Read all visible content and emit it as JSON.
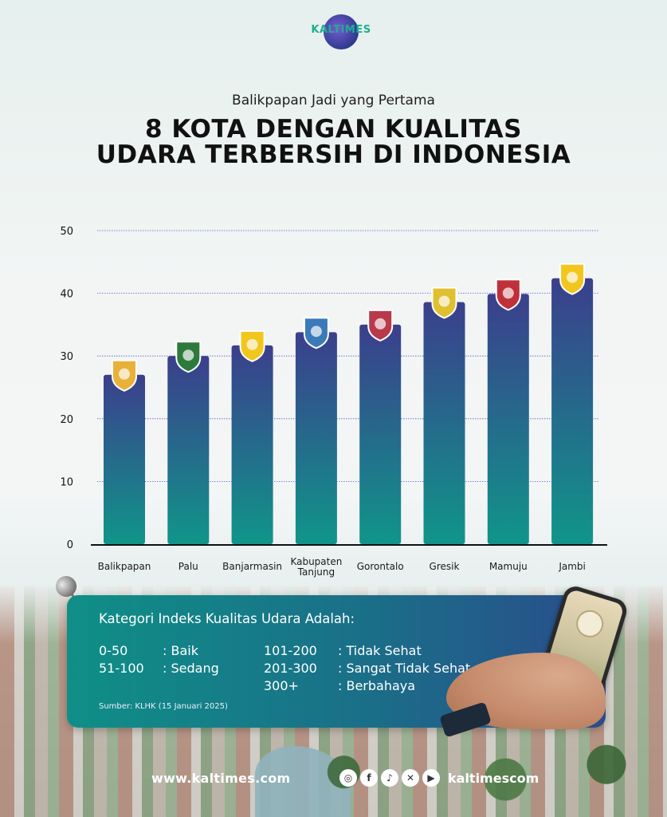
{
  "brand": {
    "logo_text": "KALTIMES"
  },
  "header": {
    "subtitle": "Balikpapan Jadi yang Pertama",
    "title_line1": "8 KOTA DENGAN KUALITAS",
    "title_line2": "UDARA TERBERSIH DI INDONESIA"
  },
  "chart_data": {
    "type": "bar",
    "title": "8 KOTA DENGAN KUALITAS UDARA TERBERSIH DI INDONESIA",
    "categories": [
      "Balikpapan",
      "Palu",
      "Banjarmasin",
      "Kabupaten Tanjung",
      "Gorontalo",
      "Gresik",
      "Mamuju",
      "Jambi"
    ],
    "category_lines": [
      [
        "Balikpapan"
      ],
      [
        "Palu"
      ],
      [
        "Banjarmasin"
      ],
      [
        "Kabupaten",
        "Tanjung"
      ],
      [
        "Gorontalo"
      ],
      [
        "Gresik"
      ],
      [
        "Mamuju"
      ],
      [
        "Jambi"
      ]
    ],
    "values": [
      27,
      30,
      31.7,
      33.8,
      35,
      38.6,
      39.9,
      42.4
    ],
    "ylim": [
      0,
      50
    ],
    "yticks": [
      0,
      10,
      20,
      30,
      40,
      50
    ],
    "xlabel": "",
    "ylabel": "",
    "grid": true,
    "colors": {
      "bar_top": "#3b3f8c",
      "bar_bottom": "#10958a",
      "grid": "#5a5fd0",
      "axis": "#111111"
    }
  },
  "panel": {
    "title": "Kategori Indeks Kualitas Udara Adalah:",
    "categories": [
      {
        "range": "0-50",
        "label": ": Baik"
      },
      {
        "range": "51-100",
        "label": ": Sedang"
      },
      {
        "range": "101-200",
        "label": ": Tidak Sehat"
      },
      {
        "range": "201-300",
        "label": ": Sangat Tidak Sehat"
      },
      {
        "range": "300+",
        "label": ": Berbahaya"
      }
    ],
    "source": "Sumber: KLHK (15 Januari 2025)"
  },
  "footer": {
    "url": "www.kaltimes.com",
    "handle": "kaltimescom",
    "social_icons": [
      "instagram-icon",
      "facebook-icon",
      "tiktok-icon",
      "x-icon",
      "youtube-icon"
    ]
  }
}
